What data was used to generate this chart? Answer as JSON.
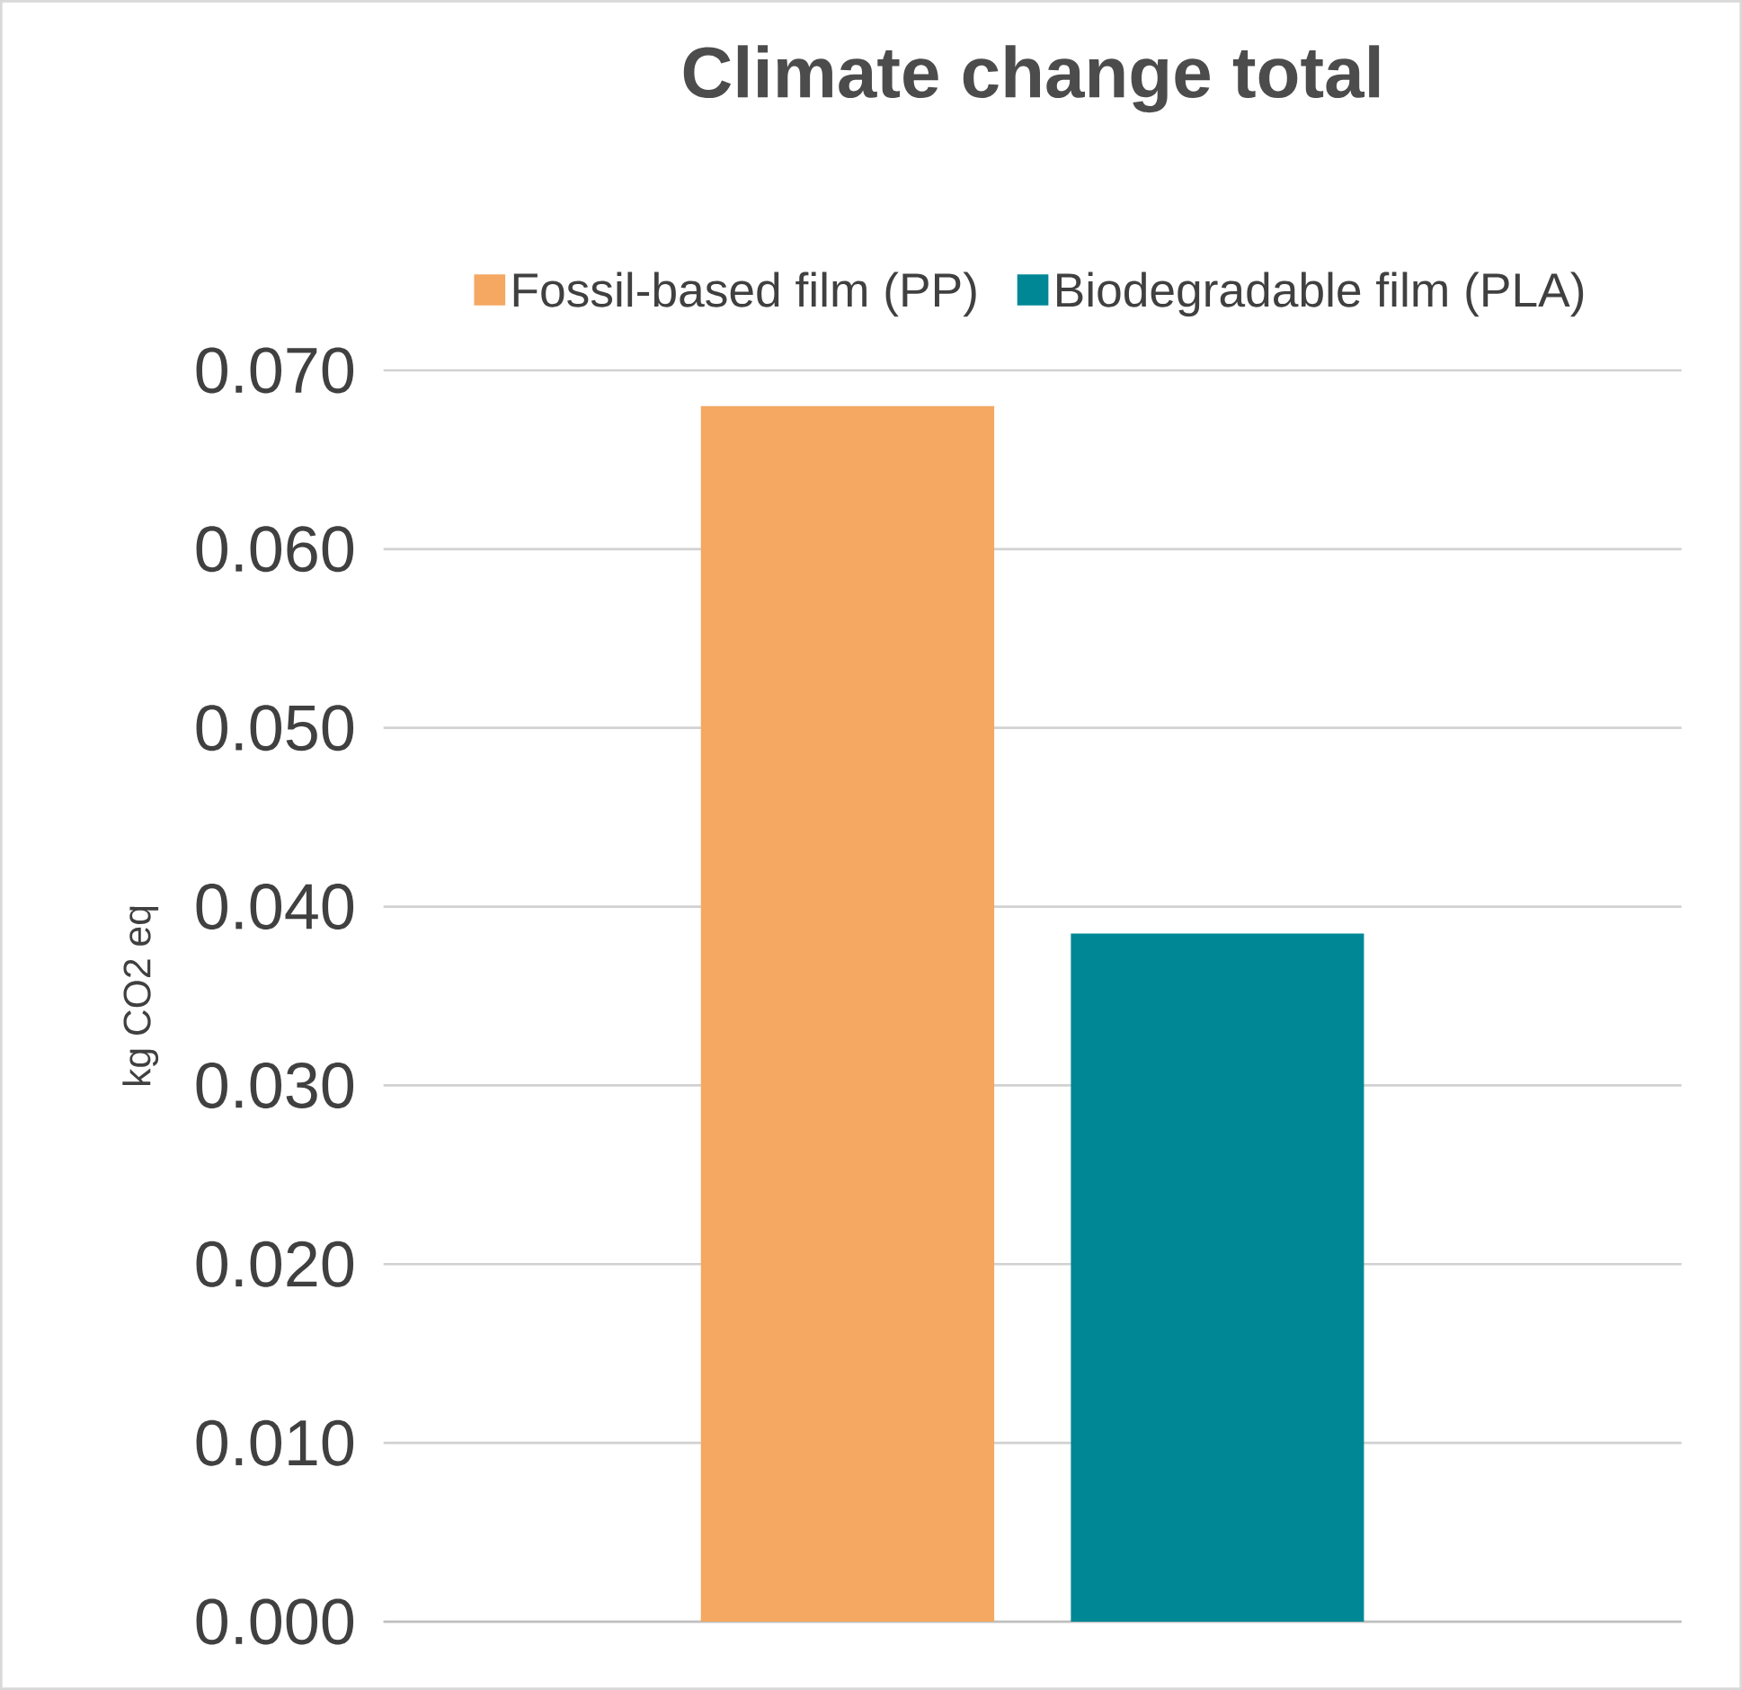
{
  "chart_data": {
    "type": "bar",
    "title": "Climate change total",
    "ylabel": "kg CO2 eq",
    "categories": [
      null
    ],
    "series": [
      {
        "name": "Fossil-based film (PP)",
        "color": "#f4a862",
        "values": [
          0.068
        ]
      },
      {
        "name": "Biodegradable film (PLA)",
        "color": "#008795",
        "values": [
          0.0385
        ]
      }
    ],
    "ylim": [
      0,
      0.07
    ],
    "yticks": [
      {
        "value": 0,
        "label": "0.000"
      },
      {
        "value": 0.01,
        "label": "0.010"
      },
      {
        "value": 0.02,
        "label": "0.020"
      },
      {
        "value": 0.03,
        "label": "0.030"
      },
      {
        "value": 0.04,
        "label": "0.040"
      },
      {
        "value": 0.05,
        "label": "0.050"
      },
      {
        "value": 0.06,
        "label": "0.060"
      },
      {
        "value": 0.07,
        "label": "0.070"
      }
    ],
    "grid": "y",
    "legend": "top"
  }
}
